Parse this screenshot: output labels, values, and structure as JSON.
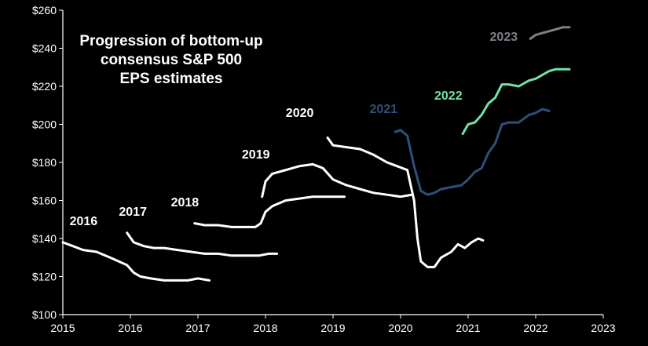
{
  "chart_data": {
    "type": "line",
    "title_lines": [
      "Progression of bottom-up",
      "consensus S&P 500",
      "EPS estimates"
    ],
    "xlabel": "",
    "ylabel": "",
    "xlim": [
      2015,
      2023
    ],
    "ylim": [
      100,
      260
    ],
    "x_ticks": [
      2015,
      2016,
      2017,
      2018,
      2019,
      2020,
      2021,
      2022,
      2023
    ],
    "y_ticks": [
      100,
      120,
      140,
      160,
      180,
      200,
      220,
      240,
      260
    ],
    "y_tick_labels": [
      "$100",
      "$120",
      "$140",
      "$160",
      "$180",
      "$200",
      "$220",
      "$240",
      "$260"
    ],
    "grid": false,
    "legend": "none",
    "colors": {
      "background": "#000000",
      "axis": "#ffffff",
      "text": "#ffffff",
      "white_series": "#ffffff",
      "series_2021": "#2f4f7a",
      "series_2022": "#6fe3a8",
      "series_2023": "#7d8088"
    },
    "series": [
      {
        "name": "2016",
        "color": "#ffffff",
        "x": [
          2015.0,
          2015.15,
          2015.3,
          2015.5,
          2015.7,
          2015.95,
          2016.05,
          2016.15,
          2016.3,
          2016.5,
          2016.7,
          2016.85,
          2017.0,
          2017.17
        ],
        "y": [
          138,
          136,
          134,
          133,
          130,
          126,
          122,
          120,
          119,
          118,
          118,
          118,
          119,
          118
        ]
      },
      {
        "name": "2017",
        "color": "#ffffff",
        "x": [
          2015.95,
          2016.05,
          2016.2,
          2016.35,
          2016.5,
          2016.7,
          2016.9,
          2017.1,
          2017.3,
          2017.5,
          2017.7,
          2017.9,
          2018.05,
          2018.17
        ],
        "y": [
          143,
          138,
          136,
          135,
          135,
          134,
          133,
          132,
          132,
          131,
          131,
          131,
          132,
          132
        ]
      },
      {
        "name": "2018",
        "color": "#ffffff",
        "x": [
          2016.95,
          2017.1,
          2017.3,
          2017.5,
          2017.7,
          2017.85,
          2017.93,
          2018.0,
          2018.1,
          2018.3,
          2018.5,
          2018.7,
          2018.9,
          2019.1,
          2019.17
        ],
        "y": [
          148,
          147,
          147,
          146,
          146,
          146,
          148,
          154,
          157,
          160,
          161,
          162,
          162,
          162,
          162
        ]
      },
      {
        "name": "2019",
        "color": "#ffffff",
        "x": [
          2017.95,
          2018.0,
          2018.1,
          2018.3,
          2018.5,
          2018.7,
          2018.85,
          2019.0,
          2019.2,
          2019.4,
          2019.6,
          2019.8,
          2020.0,
          2020.17
        ],
        "y": [
          162,
          170,
          174,
          176,
          178,
          179,
          177,
          171,
          168,
          166,
          164,
          163,
          162,
          163
        ]
      },
      {
        "name": "2020",
        "color": "#ffffff",
        "x": [
          2018.92,
          2019.0,
          2019.2,
          2019.4,
          2019.6,
          2019.8,
          2019.95,
          2020.1,
          2020.2,
          2020.25,
          2020.3,
          2020.4,
          2020.5,
          2020.6,
          2020.75,
          2020.85,
          2020.95,
          2021.05,
          2021.15,
          2021.22
        ],
        "y": [
          193,
          189,
          188,
          187,
          184,
          180,
          178,
          176,
          160,
          140,
          128,
          125,
          125,
          130,
          133,
          137,
          135,
          138,
          140,
          139
        ]
      },
      {
        "name": "2021",
        "color": "#2f4f7a",
        "x": [
          2019.92,
          2020.0,
          2020.1,
          2020.2,
          2020.3,
          2020.4,
          2020.5,
          2020.6,
          2020.75,
          2020.9,
          2021.0,
          2021.1,
          2021.2,
          2021.3,
          2021.4,
          2021.5,
          2021.6,
          2021.75,
          2021.9,
          2022.0,
          2022.1,
          2022.2
        ],
        "y": [
          196,
          197,
          194,
          178,
          165,
          163,
          164,
          166,
          167,
          168,
          171,
          175,
          177,
          185,
          190,
          200,
          201,
          201,
          205,
          206,
          208,
          207
        ]
      },
      {
        "name": "2022",
        "color": "#6fe3a8",
        "x": [
          2020.92,
          2021.0,
          2021.1,
          2021.2,
          2021.3,
          2021.4,
          2021.5,
          2021.6,
          2021.75,
          2021.9,
          2022.0,
          2022.1,
          2022.2,
          2022.3,
          2022.4,
          2022.5
        ],
        "y": [
          195,
          200,
          201,
          205,
          211,
          214,
          221,
          221,
          220,
          223,
          224,
          226,
          228,
          229,
          229,
          229
        ]
      },
      {
        "name": "2023",
        "color": "#7d8088",
        "x": [
          2021.92,
          2022.0,
          2022.1,
          2022.2,
          2022.3,
          2022.4,
          2022.5
        ],
        "y": [
          245,
          247,
          248,
          249,
          250,
          251,
          251
        ]
      }
    ],
    "series_labels": [
      {
        "text": "2016",
        "x": 2015.1,
        "y": 147,
        "color": "#ffffff"
      },
      {
        "text": "2017",
        "x": 2015.83,
        "y": 152,
        "color": "#ffffff"
      },
      {
        "text": "2018",
        "x": 2016.6,
        "y": 157,
        "color": "#ffffff"
      },
      {
        "text": "2019",
        "x": 2017.65,
        "y": 182,
        "color": "#ffffff"
      },
      {
        "text": "2020",
        "x": 2018.3,
        "y": 204,
        "color": "#ffffff"
      },
      {
        "text": "2021",
        "x": 2019.54,
        "y": 206,
        "color": "#2f4f7a"
      },
      {
        "text": "2022",
        "x": 2020.5,
        "y": 213,
        "color": "#6fe3a8"
      },
      {
        "text": "2023",
        "x": 2021.32,
        "y": 244,
        "color": "#7d8088"
      }
    ]
  }
}
